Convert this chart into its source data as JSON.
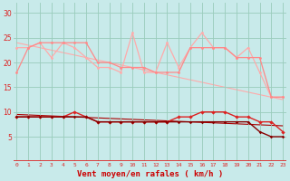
{
  "x": [
    0,
    1,
    2,
    3,
    4,
    5,
    6,
    7,
    8,
    9,
    10,
    11,
    12,
    13,
    14,
    15,
    16,
    17,
    18,
    19,
    20,
    21,
    22,
    23
  ],
  "rafales": [
    23,
    23,
    24,
    21,
    24,
    23,
    21,
    19,
    19,
    18,
    26,
    18,
    18,
    24,
    19,
    23,
    26,
    23,
    23,
    21,
    23,
    18,
    13,
    13
  ],
  "moyenne_zigzag": [
    18,
    23,
    24,
    24,
    24,
    24,
    24,
    20,
    20,
    19,
    19,
    19,
    18,
    18,
    18,
    23,
    23,
    23,
    23,
    21,
    21,
    21,
    13,
    13
  ],
  "vent_moyen": [
    9,
    9,
    9,
    9,
    9,
    10,
    9,
    8,
    8,
    8,
    8,
    8,
    8,
    8,
    9,
    9,
    10,
    10,
    10,
    9,
    9,
    8,
    8,
    6
  ],
  "vent_min_line": [
    9,
    9,
    9,
    9,
    9,
    9,
    9,
    8,
    8,
    8,
    8,
    8,
    8,
    8,
    8,
    8,
    8,
    8,
    8,
    8,
    8,
    6,
    5,
    5
  ],
  "trend_high": [
    24,
    23.5,
    23,
    22.5,
    22,
    21.5,
    21,
    20.5,
    20,
    19.5,
    19,
    18.5,
    18,
    17.5,
    17,
    16.5,
    16,
    15.5,
    15,
    14.5,
    14,
    13.5,
    13,
    12.5
  ],
  "trend_low": [
    9.5,
    9.4,
    9.3,
    9.2,
    9.1,
    9.0,
    8.9,
    8.8,
    8.7,
    8.6,
    8.5,
    8.4,
    8.3,
    8.2,
    8.1,
    8.0,
    7.9,
    7.8,
    7.7,
    7.6,
    7.5,
    7.4,
    7.3,
    7.2
  ],
  "ylim": [
    0,
    32
  ],
  "yticks": [
    5,
    10,
    15,
    20,
    25,
    30
  ],
  "xlabel": "Vent moyen/en rafales ( km/h )",
  "bg_color": "#c8eaea",
  "grid_color": "#99ccbb",
  "line_color_rafales": "#ffaaaa",
  "line_color_moyenne": "#ff8888",
  "line_color_trend_high": "#ffaaaa",
  "line_color_vent": "#dd2222",
  "line_color_vent_min": "#880000",
  "line_color_trend_low": "#aa0000",
  "arrow_color": "#dd2222",
  "tick_color": "#dd2222",
  "xlabel_color": "#cc0000"
}
